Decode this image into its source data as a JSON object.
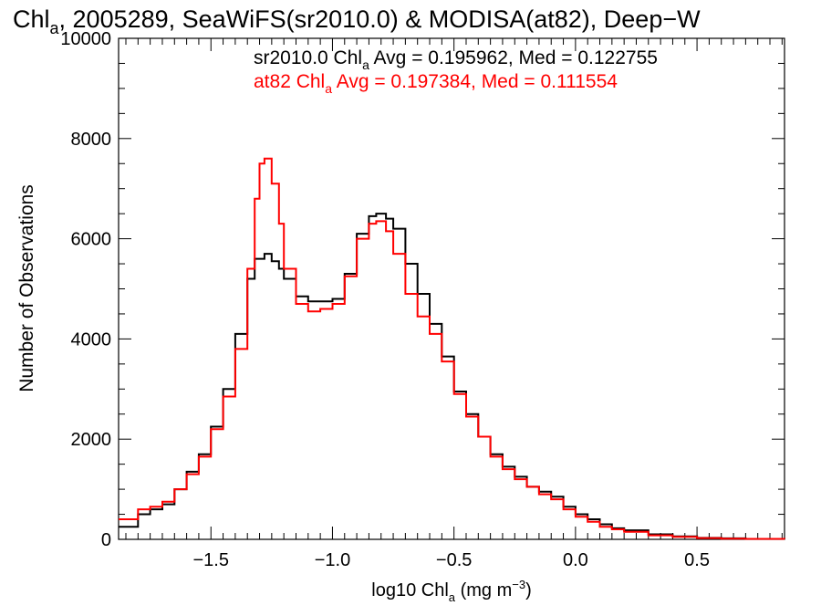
{
  "chart_data": {
    "type": "line",
    "title": "Chla, 2005289, SeaWiFS(sr2010.0) & MODISA(at82), Deep-W",
    "title_parts": {
      "pre": "Chl",
      "sub": "a",
      "post": ", 2005289, SeaWiFS(sr2010.0) & MODISA(at82), Deep−W"
    },
    "xlabel": "log10 Chla (mg m-3)",
    "xlabel_parts": {
      "pre": "log10 Chl",
      "sub": "a",
      "mid": " (mg m",
      "sup": "−3",
      "post": ")"
    },
    "ylabel": "Number of Observations",
    "xlim": [
      -1.88,
      0.86
    ],
    "ylim": [
      0,
      10000
    ],
    "x_ticks": [
      -1.5,
      -1.0,
      -0.5,
      0.0,
      0.5
    ],
    "x_tick_labels": [
      "−1.5",
      "−1.0",
      "−0.5",
      "0.0",
      "0.5"
    ],
    "y_ticks": [
      0,
      2000,
      4000,
      6000,
      8000,
      10000
    ],
    "y_tick_labels": [
      "0",
      "2000",
      "4000",
      "6000",
      "8000",
      "10000"
    ],
    "grid": false,
    "legend": [
      {
        "pre": "sr2010.0 Chl",
        "sub": "a",
        "post": " Avg = 0.195962, Med = 0.122755",
        "color": "#000000"
      },
      {
        "pre": "at82 Chl",
        "sub": "a",
        "post": " Avg = 0.197384, Med = 0.111554",
        "color": "#ff0000"
      }
    ],
    "series": [
      {
        "color": "#000000",
        "x": [
          -1.88,
          -1.8,
          -1.75,
          -1.7,
          -1.65,
          -1.6,
          -1.55,
          -1.5,
          -1.45,
          -1.4,
          -1.35,
          -1.32,
          -1.3,
          -1.28,
          -1.25,
          -1.22,
          -1.2,
          -1.15,
          -1.1,
          -1.05,
          -1.0,
          -0.95,
          -0.9,
          -0.85,
          -0.82,
          -0.78,
          -0.75,
          -0.7,
          -0.65,
          -0.6,
          -0.55,
          -0.5,
          -0.45,
          -0.4,
          -0.35,
          -0.3,
          -0.25,
          -0.2,
          -0.15,
          -0.1,
          -0.05,
          0.0,
          0.05,
          0.1,
          0.15,
          0.2,
          0.3,
          0.4,
          0.5,
          0.6,
          0.7,
          0.86
        ],
        "y": [
          250,
          500,
          600,
          700,
          1000,
          1350,
          1700,
          2250,
          3000,
          4100,
          5200,
          5600,
          5600,
          5700,
          5550,
          5400,
          5200,
          4850,
          4750,
          4750,
          4800,
          5300,
          6100,
          6450,
          6500,
          6400,
          6200,
          5500,
          4900,
          4300,
          3650,
          2950,
          2500,
          2050,
          1700,
          1450,
          1250,
          1050,
          950,
          850,
          650,
          500,
          400,
          300,
          220,
          180,
          100,
          60,
          30,
          20,
          10,
          5
        ]
      },
      {
        "color": "#ff0000",
        "x": [
          -1.88,
          -1.8,
          -1.75,
          -1.7,
          -1.65,
          -1.6,
          -1.55,
          -1.5,
          -1.45,
          -1.4,
          -1.35,
          -1.32,
          -1.3,
          -1.28,
          -1.25,
          -1.22,
          -1.2,
          -1.15,
          -1.1,
          -1.05,
          -1.0,
          -0.95,
          -0.9,
          -0.85,
          -0.82,
          -0.78,
          -0.75,
          -0.7,
          -0.65,
          -0.6,
          -0.55,
          -0.5,
          -0.45,
          -0.4,
          -0.35,
          -0.3,
          -0.25,
          -0.2,
          -0.15,
          -0.1,
          -0.05,
          0.0,
          0.05,
          0.1,
          0.15,
          0.2,
          0.3,
          0.4,
          0.5,
          0.6,
          0.7,
          0.86
        ],
        "y": [
          400,
          600,
          650,
          750,
          1000,
          1300,
          1650,
          2200,
          2850,
          3800,
          5400,
          6800,
          7500,
          7600,
          7100,
          6300,
          5400,
          4700,
          4550,
          4600,
          4700,
          5250,
          6000,
          6300,
          6350,
          6150,
          5700,
          4900,
          4450,
          4100,
          3550,
          2900,
          2450,
          2050,
          1650,
          1400,
          1200,
          1050,
          900,
          800,
          600,
          450,
          350,
          250,
          200,
          150,
          80,
          50,
          25,
          15,
          10,
          5
        ]
      }
    ]
  }
}
